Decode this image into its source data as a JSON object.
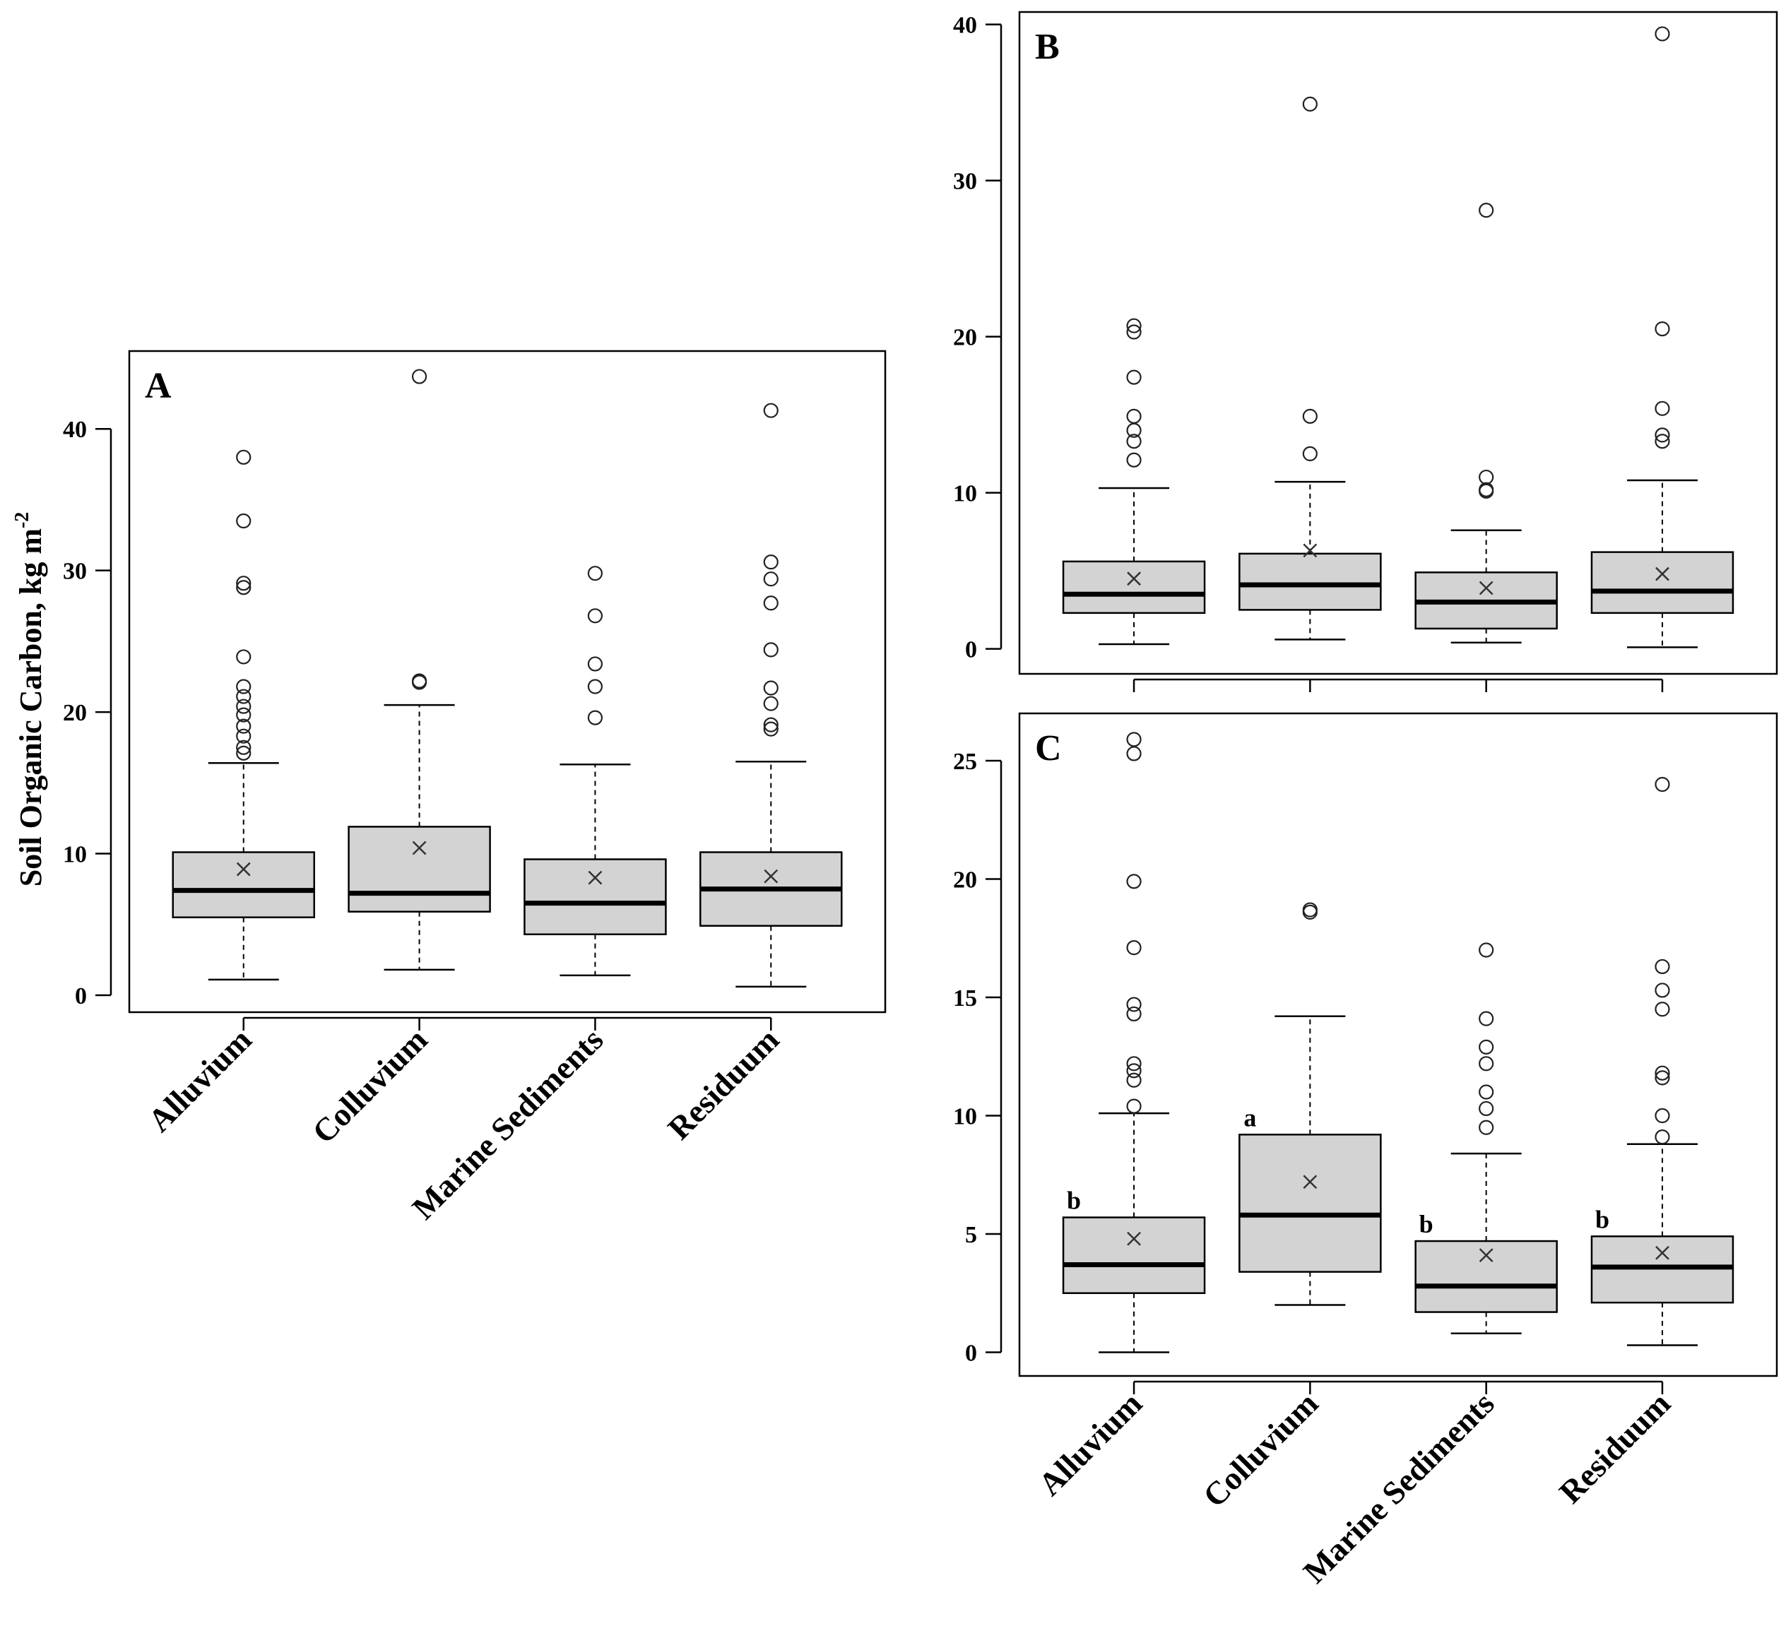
{
  "figure": {
    "ylabel": "Soil Organic Carbon, kg m",
    "ylabel_sup": "-2"
  },
  "chart_data": [
    {
      "panel": "A",
      "type": "box",
      "categories": [
        "Alluvium",
        "Colluvium",
        "Marine Sediments",
        "Residuum"
      ],
      "ylim": [
        -1.2,
        45.5
      ],
      "yticks": [
        0,
        10,
        20,
        30,
        40
      ],
      "ytick_labels": [
        "0",
        "10",
        "20",
        "30",
        "40"
      ],
      "show_xlabels": true,
      "boxes": [
        {
          "q1": 5.5,
          "median": 7.4,
          "q3": 10.1,
          "wlo": 1.1,
          "whi": 16.4,
          "mean": 8.9,
          "outliers": [
            17.1,
            17.5,
            18.3,
            19.0,
            19.8,
            20.4,
            21.1,
            21.8,
            23.9,
            28.8,
            29.1,
            33.5,
            38.0
          ]
        },
        {
          "q1": 5.9,
          "median": 7.2,
          "q3": 11.9,
          "wlo": 1.8,
          "whi": 20.5,
          "mean": 10.4,
          "outliers": [
            22.1,
            22.2,
            43.7
          ]
        },
        {
          "q1": 4.3,
          "median": 6.5,
          "q3": 9.6,
          "wlo": 1.4,
          "whi": 16.3,
          "mean": 8.3,
          "outliers": [
            19.6,
            21.8,
            23.4,
            26.8,
            29.8
          ]
        },
        {
          "q1": 4.9,
          "median": 7.5,
          "q3": 10.1,
          "wlo": 0.6,
          "whi": 16.5,
          "mean": 8.4,
          "outliers": [
            18.8,
            19.1,
            20.6,
            21.7,
            24.4,
            27.7,
            29.4,
            30.6,
            41.3
          ]
        }
      ],
      "significance": []
    },
    {
      "panel": "B",
      "type": "box",
      "categories": [
        "Alluvium",
        "Colluvium",
        "Marine Sediments",
        "Residuum"
      ],
      "ylim": [
        -1.6,
        40.8
      ],
      "yticks": [
        0,
        10,
        20,
        30,
        40
      ],
      "ytick_labels": [
        "0",
        "10",
        "20",
        "30",
        "40"
      ],
      "show_xlabels": false,
      "boxes": [
        {
          "q1": 2.3,
          "median": 3.5,
          "q3": 5.6,
          "wlo": 0.3,
          "whi": 10.3,
          "mean": 4.5,
          "outliers": [
            12.1,
            13.3,
            14.0,
            14.9,
            17.4,
            20.3,
            20.7
          ]
        },
        {
          "q1": 2.5,
          "median": 4.1,
          "q3": 6.1,
          "wlo": 0.6,
          "whi": 10.7,
          "mean": 6.3,
          "outliers": [
            12.5,
            14.9,
            34.9
          ]
        },
        {
          "q1": 1.3,
          "median": 3.0,
          "q3": 4.9,
          "wlo": 0.4,
          "whi": 7.6,
          "mean": 3.9,
          "outliers": [
            10.1,
            10.2,
            11.0,
            28.1
          ]
        },
        {
          "q1": 2.3,
          "median": 3.7,
          "q3": 6.2,
          "wlo": 0.1,
          "whi": 10.8,
          "mean": 4.8,
          "outliers": [
            13.3,
            13.7,
            15.4,
            20.5,
            39.4
          ]
        }
      ],
      "significance": []
    },
    {
      "panel": "C",
      "type": "box",
      "categories": [
        "Alluvium",
        "Colluvium",
        "Marine Sediments",
        "Residuum"
      ],
      "ylim": [
        -1.0,
        27.0
      ],
      "yticks": [
        0,
        5,
        10,
        15,
        20,
        25
      ],
      "ytick_labels": [
        "0",
        "5",
        "10",
        "15",
        "20",
        "25"
      ],
      "show_xlabels": true,
      "boxes": [
        {
          "q1": 2.5,
          "median": 3.7,
          "q3": 5.7,
          "wlo": 0.0,
          "whi": 10.1,
          "mean": 4.8,
          "outliers": [
            10.4,
            11.5,
            11.9,
            12.2,
            14.3,
            14.7,
            17.1,
            19.9,
            25.3,
            25.9
          ]
        },
        {
          "q1": 3.4,
          "median": 5.8,
          "q3": 9.2,
          "wlo": 2.0,
          "whi": 14.2,
          "mean": 7.2,
          "outliers": [
            18.6,
            18.7
          ]
        },
        {
          "q1": 1.7,
          "median": 2.8,
          "q3": 4.7,
          "wlo": 0.8,
          "whi": 8.4,
          "mean": 4.1,
          "outliers": [
            9.5,
            10.3,
            11.0,
            12.2,
            12.9,
            14.1,
            17.0
          ]
        },
        {
          "q1": 2.1,
          "median": 3.6,
          "q3": 4.9,
          "wlo": 0.3,
          "whi": 8.8,
          "mean": 4.2,
          "outliers": [
            9.1,
            10.0,
            11.6,
            11.8,
            14.5,
            15.3,
            16.3,
            24.0
          ]
        }
      ],
      "significance": [
        "b",
        "a",
        "b",
        "b"
      ]
    }
  ]
}
